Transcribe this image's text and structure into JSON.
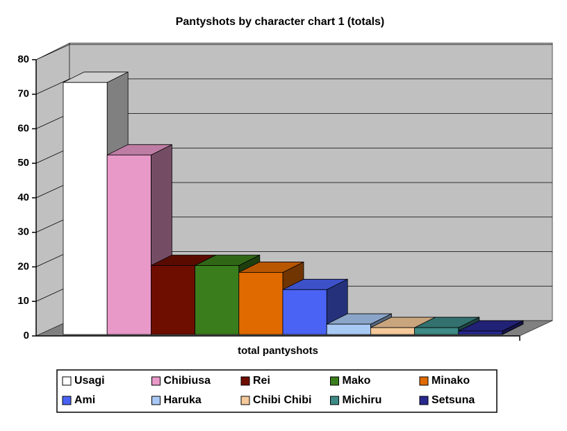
{
  "chart_data": {
    "type": "bar",
    "title": "Pantyshots by character chart 1 (totals)",
    "x_label": "total pantyshots",
    "categories": [
      "total pantyshots"
    ],
    "ylim": [
      0,
      80
    ],
    "yticks": [
      0,
      10,
      20,
      30,
      40,
      50,
      60,
      70,
      80
    ],
    "grid": true,
    "series": [
      {
        "name": "Usagi",
        "color": "#ffffff",
        "values": [
          73
        ]
      },
      {
        "name": "Chibiusa",
        "color": "#e899c8",
        "values": [
          52
        ]
      },
      {
        "name": "Rei",
        "color": "#6e0e00",
        "values": [
          20
        ]
      },
      {
        "name": "Mako",
        "color": "#3a7d1c",
        "values": [
          20
        ]
      },
      {
        "name": "Minako",
        "color": "#e06a00",
        "values": [
          18
        ]
      },
      {
        "name": "Ami",
        "color": "#4a63f5",
        "values": [
          13
        ]
      },
      {
        "name": "Haruka",
        "color": "#a9c9f5",
        "values": [
          3
        ]
      },
      {
        "name": "Chibi Chibi",
        "color": "#f5c99a",
        "values": [
          2
        ]
      },
      {
        "name": "Michiru",
        "color": "#3d8a86",
        "values": [
          2
        ]
      },
      {
        "name": "Setsuna",
        "color": "#28288f",
        "values": [
          1
        ]
      }
    ]
  }
}
